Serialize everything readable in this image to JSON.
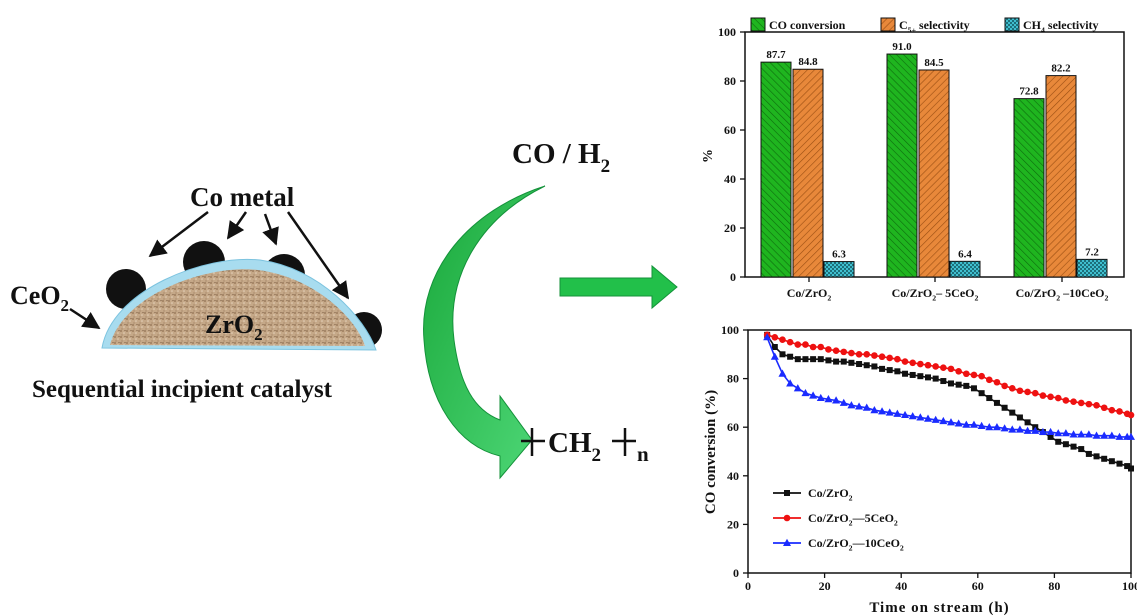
{
  "scheme": {
    "co_metal_label": "Co metal",
    "ceo2_label": "CeO",
    "ceo2_sub": "2",
    "zro2_label": "ZrO",
    "zro2_sub": "2",
    "catalyst_caption": "Sequential incipient catalyst",
    "feed_label": "CO / H",
    "feed_sub": "2",
    "product_label": "CH",
    "product_sub": "2",
    "product_n": "n"
  },
  "colors": {
    "co_conversion": "#1fb51f",
    "c5_selectivity": "#e8883a",
    "ch4_selectivity": "#3fbfcf",
    "series_zro2": "#111111",
    "series_5ceo2": "#ee1111",
    "series_10ceo2": "#1a2bff",
    "arrow_green": "#22c04a",
    "ceo2_shell": "#a8dcef",
    "zro2_core": "#c8ab8c"
  },
  "chart_data": [
    {
      "type": "bar",
      "ylabel": "%",
      "ylim": [
        0,
        100
      ],
      "yticks": [
        0,
        20,
        40,
        60,
        80,
        100
      ],
      "categories": [
        {
          "base": "Co/ZrO",
          "sub": "2",
          "tail": ""
        },
        {
          "base": "Co/ZrO",
          "sub": "2",
          "tail": "– 5CeO",
          "tail_sub": "2"
        },
        {
          "base": "Co/ZrO",
          "sub": "2",
          "tail": " –10CeO",
          "tail_sub": "2"
        }
      ],
      "legend": [
        {
          "text": "CO conversion",
          "sub": "",
          "tail": ""
        },
        {
          "text": "C",
          "sub": "5+",
          "tail": " selectivity"
        },
        {
          "text": "CH",
          "sub": "4",
          "tail": " selectivity"
        }
      ],
      "legend_position": "top",
      "series": [
        {
          "values": [
            87.7,
            91.0,
            72.8
          ],
          "labels": [
            "87.7",
            "91.0",
            "72.8"
          ]
        },
        {
          "values": [
            84.8,
            84.5,
            82.2
          ],
          "labels": [
            "84.8",
            "84.5",
            "82.2"
          ]
        },
        {
          "values": [
            6.3,
            6.4,
            7.2
          ],
          "labels": [
            "6.3",
            "6.4",
            "7.2"
          ]
        }
      ]
    },
    {
      "type": "line",
      "xlabel": "Time on stream (h)",
      "ylabel": "CO conversion (%)",
      "xlim": [
        0,
        100
      ],
      "ylim": [
        0,
        100
      ],
      "xticks": [
        0,
        20,
        40,
        60,
        80,
        100
      ],
      "yticks": [
        0,
        20,
        40,
        60,
        80,
        100
      ],
      "legend_position": "bottom-left",
      "series": [
        {
          "name": "Co/ZrO",
          "name_sub": "2",
          "name_tail": "",
          "name_tail_sub": "",
          "marker": "square",
          "x": [
            5,
            7,
            9,
            11,
            13,
            15,
            17,
            19,
            21,
            23,
            25,
            27,
            29,
            31,
            33,
            35,
            37,
            39,
            41,
            43,
            45,
            47,
            49,
            51,
            53,
            55,
            57,
            59,
            61,
            63,
            65,
            67,
            69,
            71,
            73,
            75,
            77,
            79,
            81,
            83,
            85,
            87,
            89,
            91,
            93,
            95,
            97,
            99,
            101
          ],
          "y": [
            98,
            93,
            90,
            89,
            88,
            88,
            88,
            88,
            87.5,
            87,
            87,
            86.5,
            86,
            85.5,
            85,
            84,
            83.5,
            83,
            82,
            81.5,
            81,
            80.5,
            80,
            79,
            78,
            77.5,
            77,
            76,
            74,
            72,
            70,
            68,
            66,
            64,
            62,
            60,
            58,
            56,
            54,
            53,
            52,
            51,
            49,
            48,
            47,
            46,
            45,
            44,
            43
          ]
        },
        {
          "name": "Co/ZrO",
          "name_sub": "2",
          "name_tail": "—5CeO",
          "name_tail_sub": "2",
          "marker": "circle",
          "x": [
            5,
            7,
            9,
            11,
            13,
            15,
            17,
            19,
            21,
            23,
            25,
            27,
            29,
            31,
            33,
            35,
            37,
            39,
            41,
            43,
            45,
            47,
            49,
            51,
            53,
            55,
            57,
            59,
            61,
            63,
            65,
            67,
            69,
            71,
            73,
            75,
            77,
            79,
            81,
            83,
            85,
            87,
            89,
            91,
            93,
            95,
            97,
            99,
            101
          ],
          "y": [
            98,
            97,
            96,
            95,
            94,
            94,
            93,
            93,
            92,
            91.5,
            91,
            90.5,
            90,
            90,
            89.5,
            89,
            88.5,
            88,
            87,
            86.5,
            86,
            85.5,
            85,
            84.5,
            84,
            83,
            82,
            81.5,
            81,
            79.5,
            78.5,
            77,
            76,
            75,
            74.5,
            74,
            73,
            72.5,
            72,
            71,
            70.5,
            70,
            69.5,
            69,
            68,
            67,
            66.5,
            65.5,
            65
          ]
        },
        {
          "name": "Co/ZrO",
          "name_sub": "2",
          "name_tail": "—10CeO",
          "name_tail_sub": "2",
          "marker": "triangle",
          "x": [
            5,
            7,
            9,
            11,
            13,
            15,
            17,
            19,
            21,
            23,
            25,
            27,
            29,
            31,
            33,
            35,
            37,
            39,
            41,
            43,
            45,
            47,
            49,
            51,
            53,
            55,
            57,
            59,
            61,
            63,
            65,
            67,
            69,
            71,
            73,
            75,
            77,
            79,
            81,
            83,
            85,
            87,
            89,
            91,
            93,
            95,
            97,
            99,
            101
          ],
          "y": [
            97,
            89,
            82,
            78,
            76,
            74,
            73,
            72,
            71.5,
            71,
            70,
            69,
            68.5,
            68,
            67,
            66.5,
            66,
            65.5,
            65,
            64.5,
            64,
            63.5,
            63,
            62.5,
            62,
            61.5,
            61,
            61,
            60.5,
            60,
            60,
            59.5,
            59,
            59,
            58.5,
            58.5,
            58,
            58,
            57.5,
            57.5,
            57,
            57,
            57,
            56.5,
            56.5,
            56.5,
            56,
            56,
            56
          ]
        }
      ]
    }
  ]
}
